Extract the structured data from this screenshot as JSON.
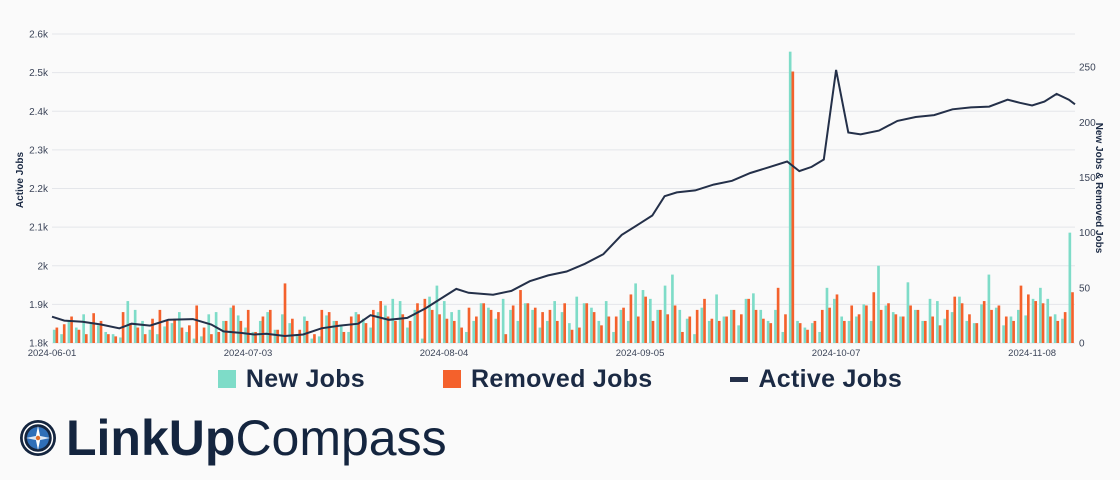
{
  "chart_data": {
    "type": "bar+line",
    "title": "",
    "x_ticks": [
      "2024-06-01",
      "2024-07-03",
      "2024-08-04",
      "2024-09-05",
      "2024-10-07",
      "2024-11-08"
    ],
    "x_range": [
      "2024-06-01",
      "2024-11-15"
    ],
    "left_axis": {
      "label": "Active Jobs",
      "range": [
        1800,
        2600
      ],
      "ticks": [
        "1.8k",
        "1.9k",
        "2k",
        "2.1k",
        "2.2k",
        "2.3k",
        "2.4k",
        "2.5k",
        "2.6k"
      ]
    },
    "right_axis": {
      "label": "New Jobs & Removed Jobs",
      "range": [
        0,
        280
      ],
      "ticks": [
        "0",
        "50",
        "100",
        "150",
        "200",
        "250"
      ]
    },
    "grid": true,
    "legend_position": "bottom",
    "series": [
      {
        "name": "New Jobs",
        "type": "bar",
        "axis": "right",
        "color": "#7edcc8",
        "values": [
          12,
          8,
          20,
          14,
          26,
          18,
          16,
          10,
          8,
          5,
          38,
          30,
          20,
          12,
          8,
          15,
          18,
          28,
          10,
          4,
          6,
          26,
          28,
          20,
          32,
          25,
          14,
          10,
          20,
          28,
          12,
          26,
          18,
          8,
          24,
          4,
          6,
          25,
          20,
          15,
          10,
          28,
          22,
          14,
          28,
          34,
          40,
          38,
          14,
          30,
          4,
          42,
          52,
          38,
          28,
          30,
          10,
          20,
          36,
          32,
          22,
          40,
          30,
          20,
          36,
          30,
          14,
          20,
          38,
          28,
          18,
          42,
          36,
          32,
          20,
          38,
          10,
          30,
          20,
          54,
          48,
          40,
          30,
          52,
          62,
          30,
          22,
          8,
          32,
          20,
          44,
          24,
          30,
          16,
          40,
          45,
          30,
          20,
          30,
          10,
          264,
          20,
          14,
          18,
          10,
          50,
          40,
          24,
          20,
          24,
          35,
          20,
          70,
          34,
          28,
          24,
          55,
          30,
          20,
          40,
          38,
          22,
          28,
          42,
          20,
          18,
          35,
          62,
          32,
          16,
          24,
          30,
          25,
          40,
          50,
          40,
          26,
          22,
          100
        ]
      },
      {
        "name": "Removed Jobs",
        "type": "bar",
        "axis": "right",
        "color": "#f4612c",
        "values": [
          14,
          17,
          24,
          12,
          8,
          27,
          20,
          8,
          6,
          28,
          18,
          14,
          8,
          22,
          30,
          20,
          22,
          14,
          16,
          34,
          14,
          8,
          10,
          20,
          34,
          20,
          30,
          10,
          24,
          30,
          12,
          54,
          22,
          12,
          20,
          8,
          30,
          28,
          20,
          10,
          24,
          26,
          18,
          30,
          38,
          24,
          20,
          26,
          20,
          36,
          40,
          30,
          26,
          22,
          20,
          14,
          32,
          24,
          36,
          30,
          28,
          8,
          34,
          48,
          36,
          32,
          28,
          30,
          20,
          36,
          12,
          14,
          36,
          28,
          16,
          24,
          24,
          32,
          44,
          24,
          42,
          20,
          30,
          26,
          34,
          10,
          24,
          30,
          40,
          22,
          20,
          24,
          30,
          26,
          40,
          30,
          22,
          18,
          50,
          26,
          246,
          18,
          12,
          20,
          30,
          32,
          44,
          20,
          34,
          26,
          34,
          46,
          30,
          36,
          26,
          24,
          34,
          30,
          20,
          24,
          16,
          30,
          42,
          36,
          26,
          18,
          38,
          30,
          34,
          24,
          20,
          52,
          44,
          38,
          36,
          24,
          20,
          28,
          46
        ]
      },
      {
        "name": "Active Jobs",
        "type": "line",
        "axis": "left",
        "color": "#243049",
        "points": [
          [
            "2024-06-01",
            1868
          ],
          [
            "2024-06-03",
            1858
          ],
          [
            "2024-06-06",
            1855
          ],
          [
            "2024-06-09",
            1848
          ],
          [
            "2024-06-12",
            1838
          ],
          [
            "2024-06-14",
            1850
          ],
          [
            "2024-06-17",
            1845
          ],
          [
            "2024-06-20",
            1860
          ],
          [
            "2024-06-24",
            1862
          ],
          [
            "2024-06-27",
            1848
          ],
          [
            "2024-06-29",
            1830
          ],
          [
            "2024-07-02",
            1826
          ],
          [
            "2024-07-04",
            1822
          ],
          [
            "2024-07-06",
            1824
          ],
          [
            "2024-07-09",
            1818
          ],
          [
            "2024-07-12",
            1822
          ],
          [
            "2024-07-15",
            1838
          ],
          [
            "2024-07-18",
            1845
          ],
          [
            "2024-07-21",
            1850
          ],
          [
            "2024-07-23",
            1872
          ],
          [
            "2024-07-26",
            1860
          ],
          [
            "2024-07-29",
            1865
          ],
          [
            "2024-08-01",
            1890
          ],
          [
            "2024-08-04",
            1920
          ],
          [
            "2024-08-06",
            1940
          ],
          [
            "2024-08-08",
            1930
          ],
          [
            "2024-08-12",
            1925
          ],
          [
            "2024-08-15",
            1935
          ],
          [
            "2024-08-18",
            1960
          ],
          [
            "2024-08-21",
            1975
          ],
          [
            "2024-08-24",
            1985
          ],
          [
            "2024-08-27",
            2005
          ],
          [
            "2024-08-30",
            2030
          ],
          [
            "2024-09-02",
            2080
          ],
          [
            "2024-09-05",
            2110
          ],
          [
            "2024-09-07",
            2130
          ],
          [
            "2024-09-09",
            2180
          ],
          [
            "2024-09-11",
            2190
          ],
          [
            "2024-09-14",
            2195
          ],
          [
            "2024-09-17",
            2210
          ],
          [
            "2024-09-20",
            2220
          ],
          [
            "2024-09-23",
            2240
          ],
          [
            "2024-09-26",
            2255
          ],
          [
            "2024-09-29",
            2270
          ],
          [
            "2024-10-01",
            2245
          ],
          [
            "2024-10-03",
            2256
          ],
          [
            "2024-10-05",
            2275
          ],
          [
            "2024-10-07",
            2507
          ],
          [
            "2024-10-09",
            2345
          ],
          [
            "2024-10-11",
            2340
          ],
          [
            "2024-10-14",
            2350
          ],
          [
            "2024-10-17",
            2375
          ],
          [
            "2024-10-20",
            2385
          ],
          [
            "2024-10-23",
            2390
          ],
          [
            "2024-10-26",
            2405
          ],
          [
            "2024-10-29",
            2410
          ],
          [
            "2024-11-01",
            2412
          ],
          [
            "2024-11-04",
            2430
          ],
          [
            "2024-11-06",
            2422
          ],
          [
            "2024-11-08",
            2415
          ],
          [
            "2024-11-10",
            2425
          ],
          [
            "2024-11-12",
            2445
          ],
          [
            "2024-11-14",
            2430
          ],
          [
            "2024-11-15",
            2418
          ]
        ]
      }
    ]
  },
  "brand": {
    "name_bold": "LinkUp",
    "name_light": "Compass",
    "logo_icon": "compass-icon",
    "logo_color": "#14253f"
  }
}
